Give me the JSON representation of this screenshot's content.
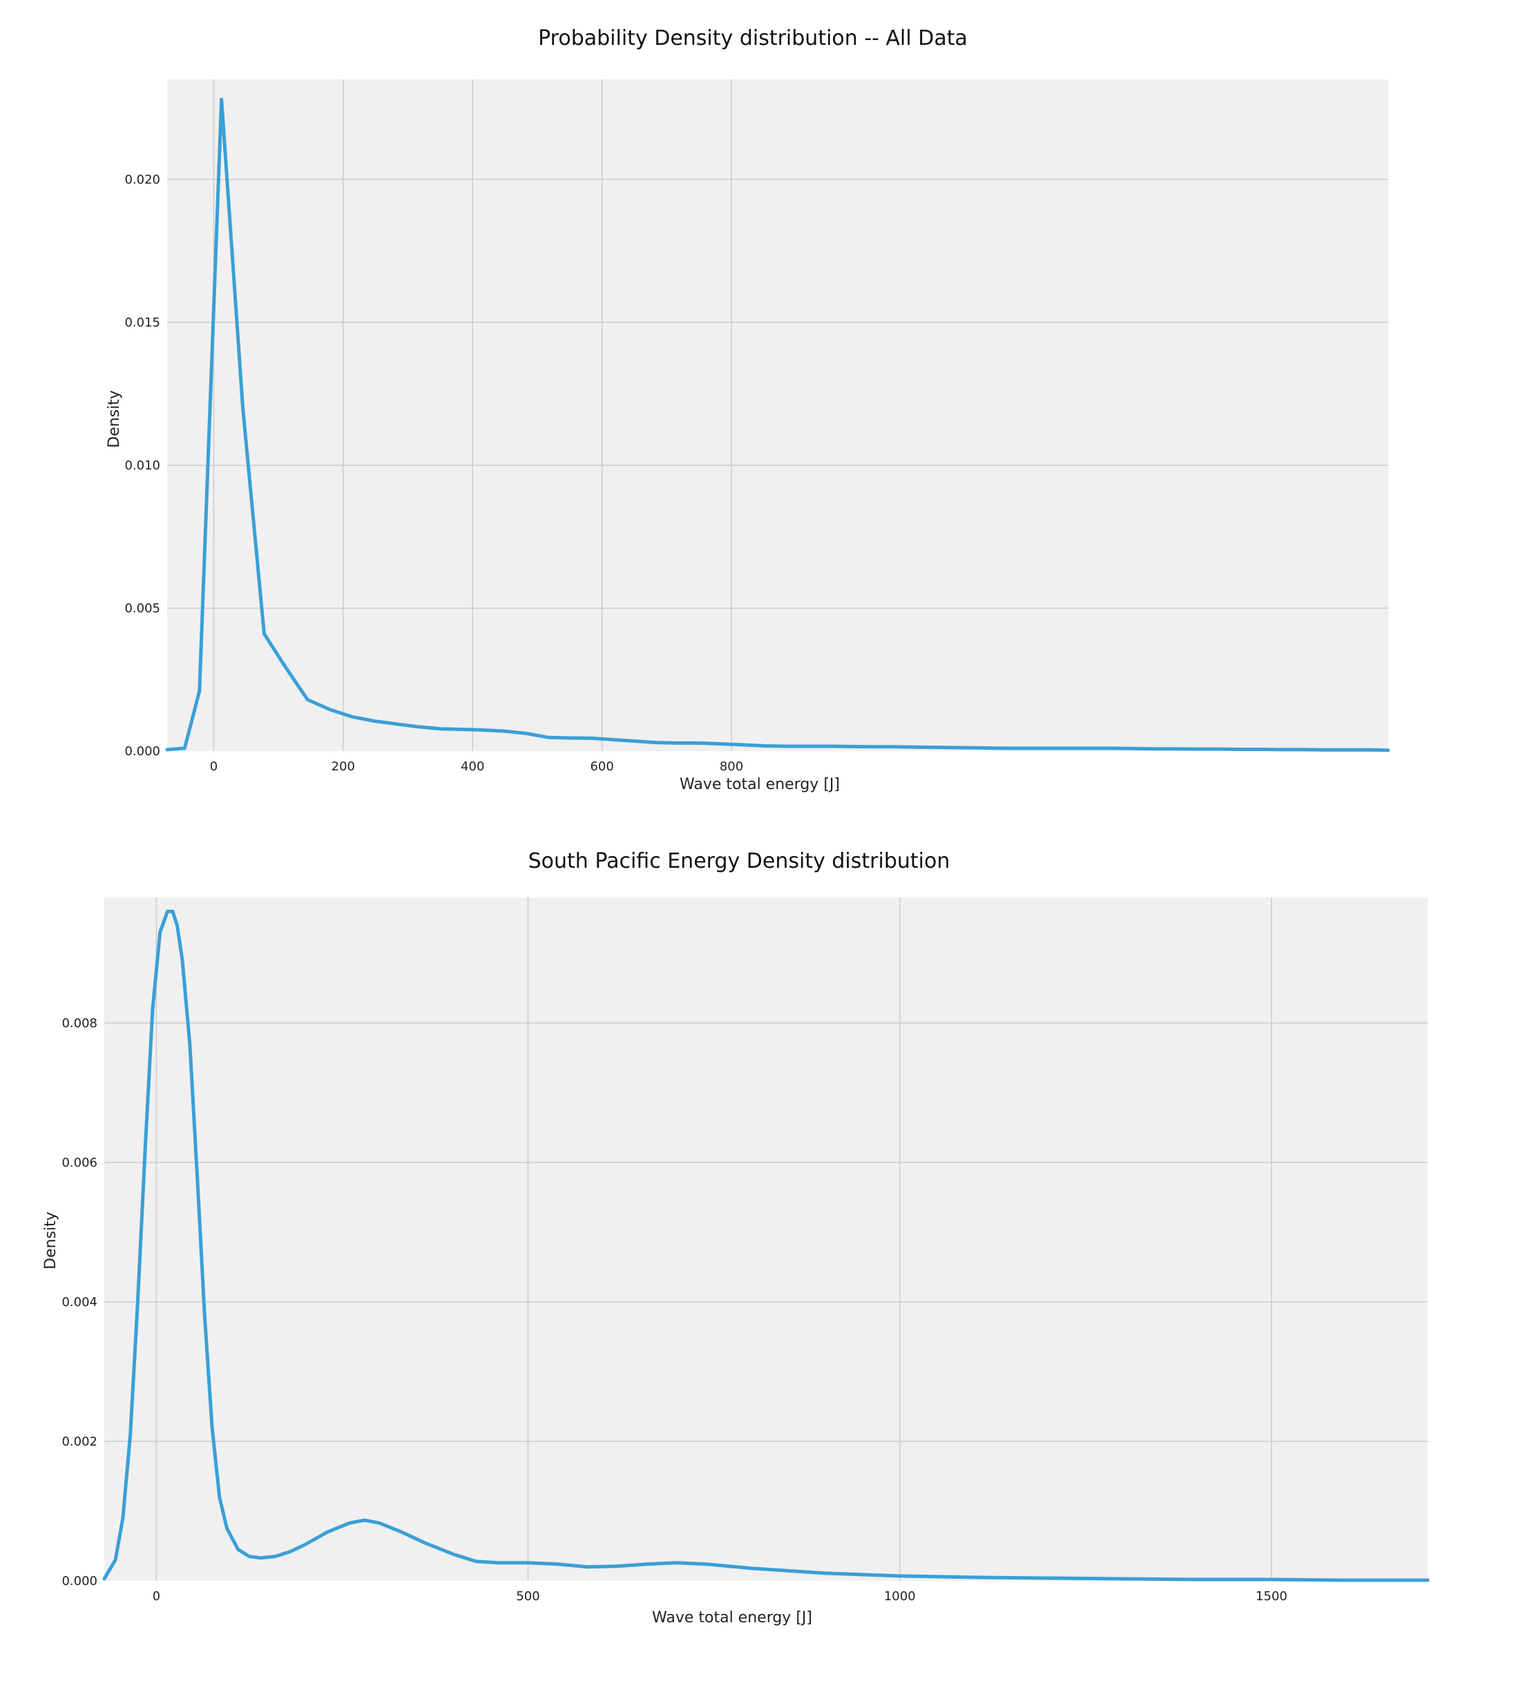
{
  "chart_data": [
    {
      "type": "line",
      "title": "Probability Density distribution -- All Data",
      "xlabel": "Wave total energy [J]",
      "ylabel": "Density",
      "xlim": [
        -72,
        1815
      ],
      "ylim": [
        0,
        0.0235
      ],
      "xticks": [
        0,
        200,
        400,
        600,
        800
      ],
      "yticks": [
        0.0,
        0.005,
        0.01,
        0.015,
        0.02
      ],
      "ytick_decimals": 3,
      "grid": true,
      "legend": "none",
      "color": "#3a9fd7",
      "series": [
        {
          "x": [
            -72,
            -45,
            -22,
            12,
            45,
            78,
            112,
            145,
            180,
            214,
            248,
            282,
            316,
            350,
            382,
            414,
            448,
            482,
            516,
            550,
            584,
            616,
            650,
            684,
            718,
            752,
            785,
            818,
            852,
            885,
            918,
            952,
            985,
            1018,
            1052,
            1085,
            1118,
            1152,
            1185,
            1218,
            1252,
            1285,
            1318,
            1352,
            1385,
            1418,
            1452,
            1485,
            1518,
            1552,
            1585,
            1618,
            1652,
            1685,
            1718,
            1752,
            1785,
            1815
          ],
          "y": [
            5e-05,
            0.0001,
            0.0021,
            0.0228,
            0.012,
            0.0041,
            0.0029,
            0.0018,
            0.00145,
            0.0012,
            0.00105,
            0.00095,
            0.00085,
            0.00078,
            0.00076,
            0.00074,
            0.0007,
            0.00062,
            0.00048,
            0.00046,
            0.00045,
            0.0004,
            0.00035,
            0.0003,
            0.00028,
            0.00028,
            0.00025,
            0.00022,
            0.00018,
            0.00017,
            0.00017,
            0.00017,
            0.00016,
            0.00015,
            0.00015,
            0.00014,
            0.00013,
            0.00012,
            0.00011,
            0.0001,
            0.0001,
            0.0001,
            0.0001,
            0.0001,
            0.0001,
            9e-05,
            8e-05,
            8e-05,
            7e-05,
            7e-05,
            6e-05,
            6e-05,
            5e-05,
            5e-05,
            4e-05,
            4e-05,
            4e-05,
            3e-05
          ]
        }
      ]
    },
    {
      "type": "line",
      "title": "South Pacific Energy Density distribution",
      "xlabel": "Wave total energy [J]",
      "ylabel": "Density",
      "xlim": [
        -70,
        1710
      ],
      "ylim": [
        0,
        0.0098
      ],
      "xticks": [
        0,
        500,
        1000,
        1500
      ],
      "yticks": [
        0.0,
        0.002,
        0.004,
        0.006,
        0.008
      ],
      "ytick_decimals": 3,
      "grid": true,
      "legend": "none",
      "color": "#3a9fd7",
      "series": [
        {
          "x": [
            -70,
            -55,
            -45,
            -35,
            -25,
            -15,
            -5,
            5,
            15,
            22,
            28,
            35,
            45,
            55,
            65,
            75,
            85,
            95,
            110,
            125,
            140,
            160,
            180,
            200,
            230,
            260,
            280,
            300,
            330,
            360,
            400,
            430,
            460,
            500,
            540,
            580,
            620,
            660,
            700,
            740,
            800,
            900,
            1000,
            1100,
            1200,
            1300,
            1400,
            1500,
            1600,
            1710
          ],
          "y": [
            3e-05,
            0.0003,
            0.0009,
            0.0021,
            0.004,
            0.0062,
            0.0082,
            0.0093,
            0.0096,
            0.0096,
            0.0094,
            0.0089,
            0.0077,
            0.0058,
            0.0038,
            0.0022,
            0.0012,
            0.00075,
            0.00045,
            0.00035,
            0.00033,
            0.00035,
            0.00042,
            0.00052,
            0.0007,
            0.00083,
            0.00087,
            0.00083,
            0.0007,
            0.00055,
            0.00038,
            0.00028,
            0.00026,
            0.00026,
            0.00024,
            0.0002,
            0.00021,
            0.00024,
            0.00026,
            0.00024,
            0.00018,
            0.00011,
            7e-05,
            5e-05,
            4e-05,
            3e-05,
            2e-05,
            2e-05,
            1e-05,
            1e-05
          ]
        }
      ]
    }
  ]
}
